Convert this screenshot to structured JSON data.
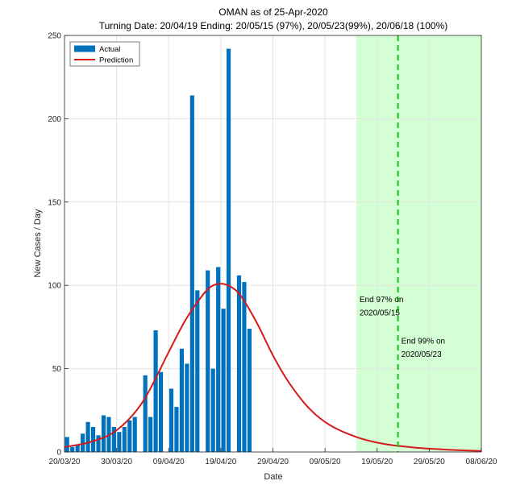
{
  "chart_data": {
    "type": "bar",
    "title": "OMAN as of 25-Apr-2020",
    "subtitle": "Turning Date: 20/04/19   Ending: 20/05/15 (97%), 20/05/23(99%), 20/06/18 (100%)",
    "xlabel": "Date",
    "ylabel": "New Cases / Day",
    "xlim": [
      "2020-03-20",
      "2020-06-08"
    ],
    "ylim": [
      0,
      250
    ],
    "yticks": [
      0,
      50,
      100,
      150,
      200,
      250
    ],
    "xticks": [
      {
        "date": "2020-03-20",
        "label": "20/03/20"
      },
      {
        "date": "2020-03-30",
        "label": "30/03/20"
      },
      {
        "date": "2020-04-09",
        "label": "09/04/20"
      },
      {
        "date": "2020-04-19",
        "label": "19/04/20"
      },
      {
        "date": "2020-04-29",
        "label": "29/04/20"
      },
      {
        "date": "2020-05-09",
        "label": "09/05/20"
      },
      {
        "date": "2020-05-19",
        "label": "19/05/20"
      },
      {
        "date": "2020-05-29",
        "label": "29/05/20"
      },
      {
        "date": "2020-06-08",
        "label": "08/06/20"
      }
    ],
    "grid": true,
    "legend_position": "top-left",
    "series": [
      {
        "name": "Actual",
        "type": "bar",
        "color": "#0072BD",
        "x": [
          "2020-03-20",
          "2020-03-21",
          "2020-03-22",
          "2020-03-23",
          "2020-03-24",
          "2020-03-25",
          "2020-03-26",
          "2020-03-27",
          "2020-03-28",
          "2020-03-29",
          "2020-03-30",
          "2020-03-31",
          "2020-04-01",
          "2020-04-02",
          "2020-04-03",
          "2020-04-04",
          "2020-04-05",
          "2020-04-06",
          "2020-04-07",
          "2020-04-08",
          "2020-04-09",
          "2020-04-10",
          "2020-04-11",
          "2020-04-12",
          "2020-04-13",
          "2020-04-14",
          "2020-04-15",
          "2020-04-16",
          "2020-04-17",
          "2020-04-18",
          "2020-04-19",
          "2020-04-20",
          "2020-04-21",
          "2020-04-22",
          "2020-04-23",
          "2020-04-24",
          "2020-04-25"
        ],
        "values": [
          9,
          3,
          4,
          11,
          18,
          15,
          10,
          22,
          21,
          15,
          12,
          15,
          19,
          21,
          0,
          46,
          21,
          73,
          48,
          0,
          38,
          27,
          62,
          53,
          214,
          97,
          0,
          109,
          50,
          111,
          86,
          242,
          0,
          106,
          102,
          74,
          0
        ]
      },
      {
        "name": "Prediction",
        "type": "line",
        "color": "#D7191C",
        "x": [
          "2020-03-20",
          "2020-03-25",
          "2020-03-30",
          "2020-04-04",
          "2020-04-09",
          "2020-04-12",
          "2020-04-15",
          "2020-04-17",
          "2020-04-19",
          "2020-04-21",
          "2020-04-23",
          "2020-04-26",
          "2020-04-29",
          "2020-05-02",
          "2020-05-06",
          "2020-05-10",
          "2020-05-15",
          "2020-05-20",
          "2020-05-25",
          "2020-05-30",
          "2020-06-04",
          "2020-06-08"
        ],
        "values": [
          3,
          6,
          13,
          30,
          60,
          78,
          92,
          99,
          101,
          99,
          93,
          77,
          58,
          42,
          26,
          16,
          9,
          5,
          3,
          1.8,
          1.0,
          0.6
        ]
      }
    ],
    "shaded_region": {
      "from": "2020-05-15",
      "to": "2020-06-08",
      "color": "#CCFFCC"
    },
    "vline": {
      "date": "2020-05-23",
      "color": "#22C922",
      "style": "dashed"
    },
    "annotations": [
      {
        "text": "End 97% on",
        "date": "2020-05-15",
        "y": 90
      },
      {
        "text": "2020/05/15",
        "date": "2020-05-15",
        "y": 82
      },
      {
        "text": "End 99% on",
        "date": "2020-05-23",
        "y": 65
      },
      {
        "text": "2020/05/23",
        "date": "2020-05-23",
        "y": 57
      }
    ]
  }
}
